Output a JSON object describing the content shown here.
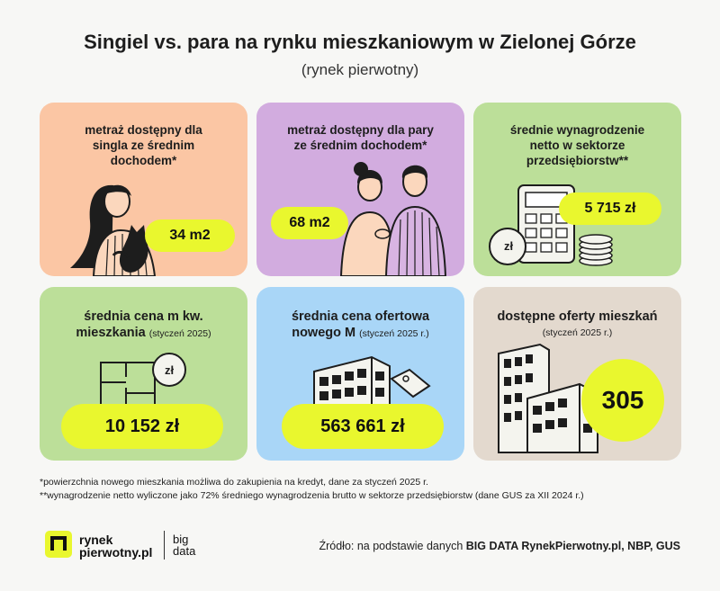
{
  "header": {
    "title": "Singiel vs. para na rynku mieszkaniowym w Zielonej Górze",
    "subtitle": "(rynek pierwotny)"
  },
  "cards": {
    "single_area": {
      "line1": "metraż dostępny dla",
      "line2": "singla ze średnim",
      "line3": "dochodem*",
      "value": "34 m2",
      "color": "#fbc6a4"
    },
    "couple_area": {
      "line1": "metraż dostępny dla pary",
      "line2": "ze średnim dochodem*",
      "value": "68 m2",
      "color": "#d2acdf"
    },
    "salary": {
      "line1": "średnie wynagrodzenie",
      "line2": "netto w sektorze",
      "line3": "przedsiębiorstw**",
      "value": "5 715 zł",
      "coin_label": "zł",
      "color": "#bcdf99"
    },
    "price_sqm": {
      "line1": "średnia cena m kw.",
      "line2": "mieszkania",
      "note": "(styczeń 2025)",
      "value": "10 152 zł",
      "coin_label": "zł",
      "color": "#bcdf99"
    },
    "offer_price": {
      "line1": "średnia cena ofertowa",
      "line2": "nowego M",
      "note": "(styczeń 2025 r.)",
      "value": "563 661 zł",
      "color": "#a9d6f7"
    },
    "offers": {
      "line1": "dostępne oferty mieszkań",
      "note": "(styczeń 2025 r.)",
      "value": "305",
      "color": "#e3d9ce"
    }
  },
  "footnotes": {
    "f1": "*powierzchnia nowego mieszkania możliwa do zakupienia na kredyt, dane za styczeń 2025 r.",
    "f2": "**wynagrodzenie netto wyliczone jako 72% średniego wynagrodzenia brutto w sektorze przedsiębiorstw (dane GUS za XII 2024 r.)"
  },
  "footer": {
    "logo_line1": "rynek",
    "logo_line2": "pierwotny.pl",
    "logo2_line1": "big",
    "logo2_line2": "data",
    "source_prefix": "Źródło: na podstawie danych ",
    "source_bold": "BIG DATA RynekPierwotny.pl, NBP, GUS"
  },
  "colors": {
    "accent": "#e9f72e",
    "text": "#1d1d1d",
    "background": "#f7f7f5"
  }
}
